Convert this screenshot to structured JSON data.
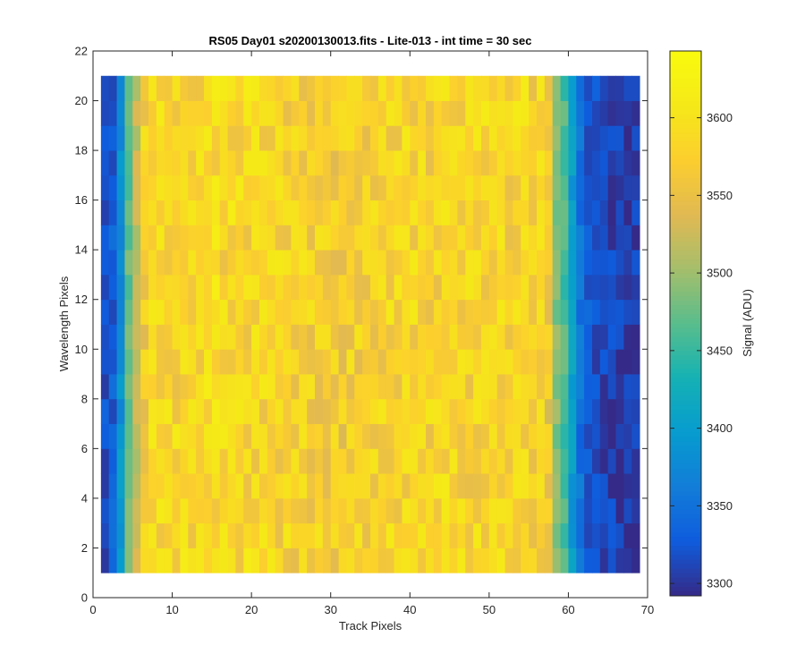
{
  "chart_data": {
    "type": "heatmap",
    "title": "RS05 Day01  s20200130013.fits - Lite-013 - int time = 30 sec",
    "xlabel": "Track Pixels",
    "ylabel": "Wavelength Pixels",
    "colorbar_label": "Signal (ADU)",
    "colormap": "parula",
    "xlim": [
      0,
      70
    ],
    "ylim": [
      0,
      22
    ],
    "xticks": [
      "0",
      "10",
      "20",
      "30",
      "40",
      "50",
      "60",
      "70"
    ],
    "yticks": [
      "0",
      "2",
      "4",
      "6",
      "8",
      "10",
      "12",
      "14",
      "16",
      "18",
      "20",
      "22"
    ],
    "clim": [
      3292,
      3643
    ],
    "cticks": [
      "3300",
      "3350",
      "3400",
      "3450",
      "3500",
      "3550",
      "3600"
    ],
    "x_range": [
      1,
      69
    ],
    "y_range": [
      1,
      21
    ],
    "columns": 68,
    "rows": 20,
    "column_profile": [
      3320,
      3330,
      3385,
      3470,
      3520,
      3568,
      3580,
      3585,
      3583,
      3580,
      3582,
      3584,
      3586,
      3583,
      3588,
      3582,
      3584,
      3580,
      3582,
      3580,
      3578,
      3580,
      3577,
      3575,
      3576,
      3574,
      3572,
      3570,
      3568,
      3565,
      3566,
      3568,
      3570,
      3572,
      3574,
      3575,
      3578,
      3576,
      3578,
      3580,
      3578,
      3576,
      3578,
      3580,
      3582,
      3580,
      3578,
      3580,
      3582,
      3584,
      3580,
      3578,
      3582,
      3580,
      3576,
      3575,
      3560,
      3490,
      3460,
      3400,
      3350,
      3325,
      3318,
      3312,
      3308,
      3305,
      3302,
      3306
    ],
    "noise_amplitude": 32
  },
  "colors": {
    "background": "#ffffff",
    "axes_frame": "#262626"
  }
}
